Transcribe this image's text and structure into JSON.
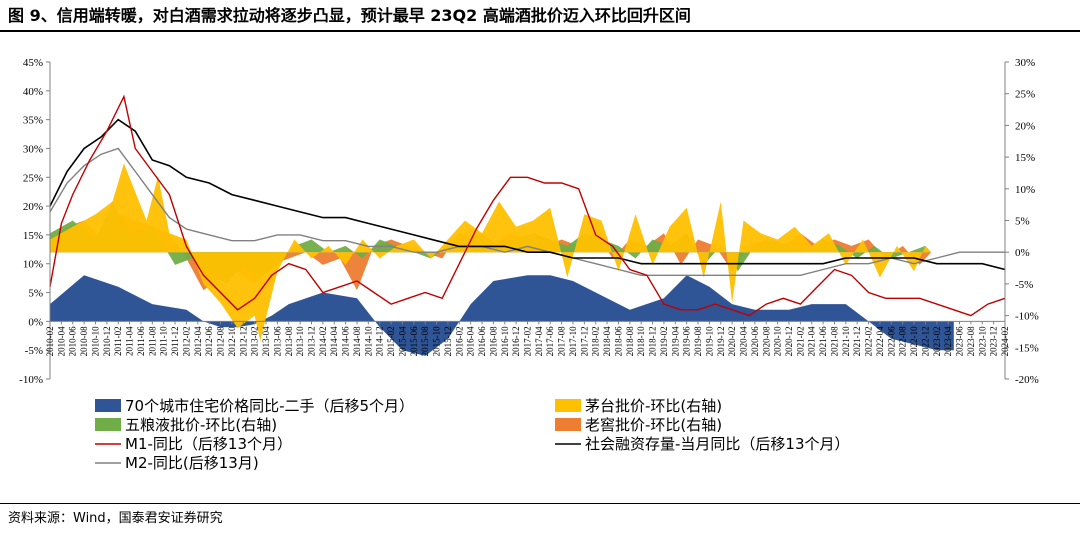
{
  "title": "图 9、信用端转暖，对白酒需求拉动将逐步凸显，预计最早 23Q2 高端酒批价迈入环比回升区间",
  "source": "资料来源：Wind，国泰君安证券研究",
  "colors": {
    "housing": "#2F5597",
    "moutai": "#FFC000",
    "wuliangye": "#70AD47",
    "laojiao": "#ED7D31",
    "m1": "#C00000",
    "social_financing": "#000000",
    "m2": "#808080"
  },
  "chart_data": {
    "type": "combo",
    "x_start": "2010-02",
    "x_end": "2024-02",
    "x_tick_step_months": 2,
    "left_axis": {
      "ylim": [
        -10,
        45
      ],
      "step": 5,
      "tick_labels": [
        "-10%",
        "-5%",
        "0%",
        "5%",
        "10%",
        "15%",
        "20%",
        "25%",
        "30%",
        "35%",
        "40%",
        "45%"
      ]
    },
    "right_axis": {
      "ylim": [
        -20,
        30
      ],
      "step": 5,
      "tick_labels": [
        "-20%",
        "-15%",
        "-10%",
        "-5%",
        "0%",
        "5%",
        "10%",
        "15%",
        "20%",
        "25%",
        "30%"
      ]
    },
    "legend": [
      {
        "key": "housing",
        "label": "70个城市住宅价格同比-二手（后移5个月）",
        "kind": "area"
      },
      {
        "key": "moutai",
        "label": "茅台批价-环比(右轴)",
        "kind": "area"
      },
      {
        "key": "wuliangye",
        "label": "五粮液批价-环比(右轴)",
        "kind": "area"
      },
      {
        "key": "laojiao",
        "label": "老窖批价-环比(右轴)",
        "kind": "area"
      },
      {
        "key": "m1",
        "label": "M1-同比（后移13个月）",
        "kind": "line"
      },
      {
        "key": "social_financing",
        "label": "社会融资存量-当月同比（后移13个月）",
        "kind": "line"
      },
      {
        "key": "m2",
        "label": "M2-同比(后移13月)",
        "kind": "line"
      }
    ],
    "series": [
      {
        "name": "70个城市住宅价格同比-二手（后移5个月）",
        "key": "housing",
        "axis": "left",
        "kind": "area",
        "x": [
          "2010-02",
          "2010-08",
          "2011-02",
          "2011-08",
          "2012-02",
          "2012-05",
          "2012-08",
          "2012-11",
          "2013-02",
          "2013-05",
          "2013-08",
          "2014-02",
          "2014-08",
          "2014-12",
          "2015-04",
          "2015-08",
          "2015-12",
          "2016-04",
          "2016-08",
          "2017-02",
          "2017-06",
          "2017-10",
          "2018-02",
          "2018-08",
          "2019-02",
          "2019-06",
          "2019-10",
          "2020-02",
          "2020-06",
          "2020-12",
          "2021-04",
          "2021-10",
          "2022-02",
          "2022-06",
          "2022-10",
          "2023-02",
          "2023-05"
        ],
        "y": [
          3,
          8,
          6,
          3,
          2,
          0,
          -1,
          -1,
          -0.5,
          1,
          3,
          5,
          4,
          -1,
          -5,
          -6,
          -3,
          3,
          7,
          8,
          8,
          7,
          5,
          2,
          4,
          8,
          6,
          3,
          2,
          2,
          3,
          3,
          0,
          -3,
          -4,
          -5,
          -5
        ]
      },
      {
        "name": "茅台批价-环比(右轴)",
        "key": "moutai",
        "axis": "right",
        "kind": "area",
        "x": [
          "2010-02",
          "2010-06",
          "2010-10",
          "2011-01",
          "2011-03",
          "2011-07",
          "2011-09",
          "2011-11",
          "2012-02",
          "2012-05",
          "2012-08",
          "2012-11",
          "2013-02",
          "2013-03",
          "2013-06",
          "2013-09",
          "2013-12",
          "2014-03",
          "2014-06",
          "2014-09",
          "2014-12",
          "2015-03",
          "2015-06",
          "2015-09",
          "2015-12",
          "2016-03",
          "2016-06",
          "2016-09",
          "2016-12",
          "2017-03",
          "2017-06",
          "2017-09",
          "2017-12",
          "2018-03",
          "2018-06",
          "2018-09",
          "2018-12",
          "2019-03",
          "2019-06",
          "2019-09",
          "2019-12",
          "2020-02",
          "2020-04",
          "2020-07",
          "2020-10",
          "2021-01",
          "2021-04",
          "2021-07",
          "2021-10",
          "2022-01",
          "2022-04",
          "2022-07",
          "2022-10",
          "2022-12",
          "2023-01"
        ],
        "y": [
          2,
          4,
          6,
          8,
          14,
          5,
          12,
          3,
          2,
          -5,
          -8,
          -12,
          -10,
          -14,
          -3,
          2,
          -1,
          1,
          -2,
          2,
          -1,
          1,
          2,
          -1,
          2,
          5,
          3,
          8,
          4,
          5,
          7,
          -4,
          6,
          5,
          -3,
          6,
          -2,
          4,
          7,
          -4,
          8,
          -8,
          5,
          3,
          2,
          4,
          1,
          3,
          -2,
          2,
          -4,
          1,
          -3,
          1,
          0
        ]
      },
      {
        "name": "五粮液批价-环比(右轴)",
        "key": "wuliangye",
        "axis": "right",
        "kind": "area",
        "x": [
          "2010-02",
          "2010-06",
          "2010-10",
          "2011-01",
          "2011-04",
          "2011-08",
          "2011-12",
          "2012-03",
          "2012-06",
          "2012-09",
          "2012-12",
          "2013-03",
          "2013-06",
          "2013-09",
          "2013-12",
          "2014-03",
          "2014-06",
          "2014-09",
          "2014-12",
          "2015-03",
          "2015-06",
          "2015-09",
          "2015-12",
          "2016-03",
          "2016-06",
          "2016-09",
          "2016-12",
          "2017-03",
          "2017-06",
          "2017-09",
          "2017-12",
          "2018-03",
          "2018-06",
          "2018-09",
          "2018-12",
          "2019-03",
          "2019-06",
          "2019-09",
          "2019-12",
          "2020-03",
          "2020-06",
          "2020-09",
          "2020-12",
          "2021-03",
          "2021-06",
          "2021-09",
          "2021-12",
          "2022-03",
          "2022-06",
          "2022-09",
          "2022-12",
          "2023-01"
        ],
        "y": [
          3,
          5,
          2,
          8,
          3,
          4,
          -2,
          -1,
          -3,
          -5,
          -2,
          -4,
          -2,
          1,
          2,
          0,
          1,
          -1,
          2,
          1,
          0,
          -1,
          1,
          2,
          3,
          1,
          2,
          3,
          2,
          1,
          3,
          2,
          1,
          -1,
          2,
          1,
          3,
          -2,
          1,
          -3,
          1,
          2,
          1,
          0,
          2,
          1,
          -1,
          1,
          -1,
          0,
          1,
          0
        ]
      },
      {
        "name": "老窖批价-环比(右轴)",
        "key": "laojiao",
        "axis": "right",
        "kind": "area",
        "x": [
          "2010-02",
          "2010-05",
          "2010-08",
          "2010-11",
          "2011-02",
          "2011-05",
          "2011-08",
          "2011-11",
          "2012-02",
          "2012-05",
          "2012-08",
          "2012-11",
          "2013-02",
          "2013-05",
          "2013-08",
          "2013-11",
          "2014-02",
          "2014-05",
          "2014-08",
          "2014-11",
          "2015-02",
          "2015-05",
          "2015-08",
          "2015-11",
          "2016-02",
          "2016-05",
          "2016-08",
          "2016-11",
          "2017-02",
          "2017-05",
          "2017-08",
          "2017-11",
          "2018-02",
          "2018-05",
          "2018-08",
          "2018-11",
          "2019-02",
          "2019-05",
          "2019-08",
          "2019-11",
          "2020-02",
          "2020-05",
          "2020-08",
          "2020-11",
          "2021-02",
          "2021-05",
          "2021-08",
          "2021-11",
          "2022-02",
          "2022-05",
          "2022-08",
          "2022-11",
          "2023-01"
        ],
        "y": [
          2,
          4,
          5,
          2,
          6,
          5,
          4,
          3,
          -1,
          -6,
          -4,
          -3,
          -5,
          -2,
          -1,
          0,
          -2,
          -1,
          -6,
          1,
          2,
          1,
          0,
          -1,
          3,
          2,
          1,
          3,
          2,
          1,
          2,
          1,
          3,
          -1,
          2,
          1,
          3,
          -2,
          2,
          1,
          -3,
          1,
          2,
          1,
          3,
          1,
          2,
          1,
          2,
          -1,
          1,
          -2,
          0
        ]
      },
      {
        "name": "M1-同比（后移13个月）",
        "key": "m1",
        "axis": "left",
        "kind": "line",
        "x": [
          "2010-02",
          "2010-04",
          "2010-06",
          "2010-09",
          "2010-12",
          "2011-03",
          "2011-05",
          "2011-08",
          "2011-11",
          "2012-02",
          "2012-05",
          "2012-08",
          "2012-11",
          "2013-02",
          "2013-05",
          "2013-08",
          "2013-11",
          "2014-02",
          "2014-05",
          "2014-08",
          "2014-11",
          "2015-02",
          "2015-05",
          "2015-08",
          "2015-11",
          "2016-02",
          "2016-05",
          "2016-08",
          "2016-11",
          "2017-02",
          "2017-05",
          "2017-08",
          "2017-11",
          "2018-02",
          "2018-05",
          "2018-08",
          "2018-11",
          "2019-02",
          "2019-05",
          "2019-08",
          "2019-11",
          "2020-02",
          "2020-05",
          "2020-08",
          "2020-11",
          "2021-02",
          "2021-05",
          "2021-08",
          "2021-11",
          "2022-02",
          "2022-05",
          "2022-08",
          "2022-11",
          "2023-02",
          "2023-05",
          "2023-08",
          "2023-11",
          "2024-02"
        ],
        "y": [
          6,
          17,
          22,
          28,
          33,
          39,
          30,
          26,
          22,
          13,
          8,
          5,
          2,
          4,
          8,
          10,
          9,
          5,
          6,
          7,
          5,
          3,
          4,
          5,
          4,
          10,
          16,
          21,
          25,
          25,
          24,
          24,
          23,
          15,
          13,
          9,
          8,
          3,
          2,
          2,
          3,
          2,
          1,
          3,
          4,
          3,
          6,
          9,
          8,
          5,
          4,
          4,
          4,
          3,
          2,
          1,
          3,
          4
        ]
      },
      {
        "name": "社会融资存量-当月同比（后移13个月）",
        "key": "social_financing",
        "axis": "left",
        "kind": "line",
        "x": [
          "2010-02",
          "2010-05",
          "2010-08",
          "2010-11",
          "2011-02",
          "2011-05",
          "2011-08",
          "2011-11",
          "2012-02",
          "2012-06",
          "2012-10",
          "2013-02",
          "2013-06",
          "2013-10",
          "2014-02",
          "2014-06",
          "2014-10",
          "2015-02",
          "2015-06",
          "2015-10",
          "2016-02",
          "2016-06",
          "2016-10",
          "2017-02",
          "2017-06",
          "2017-10",
          "2018-02",
          "2018-06",
          "2018-10",
          "2019-02",
          "2019-06",
          "2019-10",
          "2020-02",
          "2020-06",
          "2020-10",
          "2021-02",
          "2021-06",
          "2021-10",
          "2022-02",
          "2022-06",
          "2022-10",
          "2023-02",
          "2023-06",
          "2023-10",
          "2024-02"
        ],
        "y": [
          20,
          26,
          30,
          32,
          35,
          33,
          28,
          27,
          25,
          24,
          22,
          21,
          20,
          19,
          18,
          18,
          17,
          16,
          15,
          14,
          13,
          13,
          13,
          12,
          12,
          11,
          11,
          11,
          10,
          10,
          10,
          10,
          10,
          10,
          10,
          10,
          10,
          11,
          11,
          11,
          11,
          10,
          10,
          10,
          9
        ]
      },
      {
        "name": "M2-同比(后移13月)",
        "key": "m2",
        "axis": "left",
        "kind": "line",
        "x": [
          "2010-02",
          "2010-05",
          "2010-08",
          "2010-11",
          "2011-02",
          "2011-05",
          "2011-08",
          "2011-11",
          "2012-02",
          "2012-06",
          "2012-10",
          "2013-02",
          "2013-06",
          "2013-10",
          "2014-02",
          "2014-06",
          "2014-10",
          "2015-02",
          "2015-06",
          "2015-10",
          "2016-02",
          "2016-06",
          "2016-10",
          "2017-02",
          "2017-06",
          "2017-10",
          "2018-02",
          "2018-06",
          "2018-10",
          "2019-02",
          "2019-06",
          "2019-10",
          "2020-02",
          "2020-06",
          "2020-10",
          "2021-02",
          "2021-06",
          "2021-10",
          "2022-02",
          "2022-06",
          "2022-10",
          "2023-02",
          "2023-06",
          "2023-10",
          "2024-02"
        ],
        "y": [
          19,
          24,
          27,
          29,
          30,
          26,
          22,
          18,
          16,
          15,
          14,
          14,
          15,
          15,
          14,
          14,
          13,
          13,
          12,
          12,
          13,
          13,
          12,
          13,
          12,
          11,
          10,
          9,
          8,
          8,
          8,
          8,
          8,
          8,
          8,
          8,
          9,
          10,
          10,
          11,
          10,
          11,
          12,
          12,
          12
        ]
      }
    ]
  }
}
